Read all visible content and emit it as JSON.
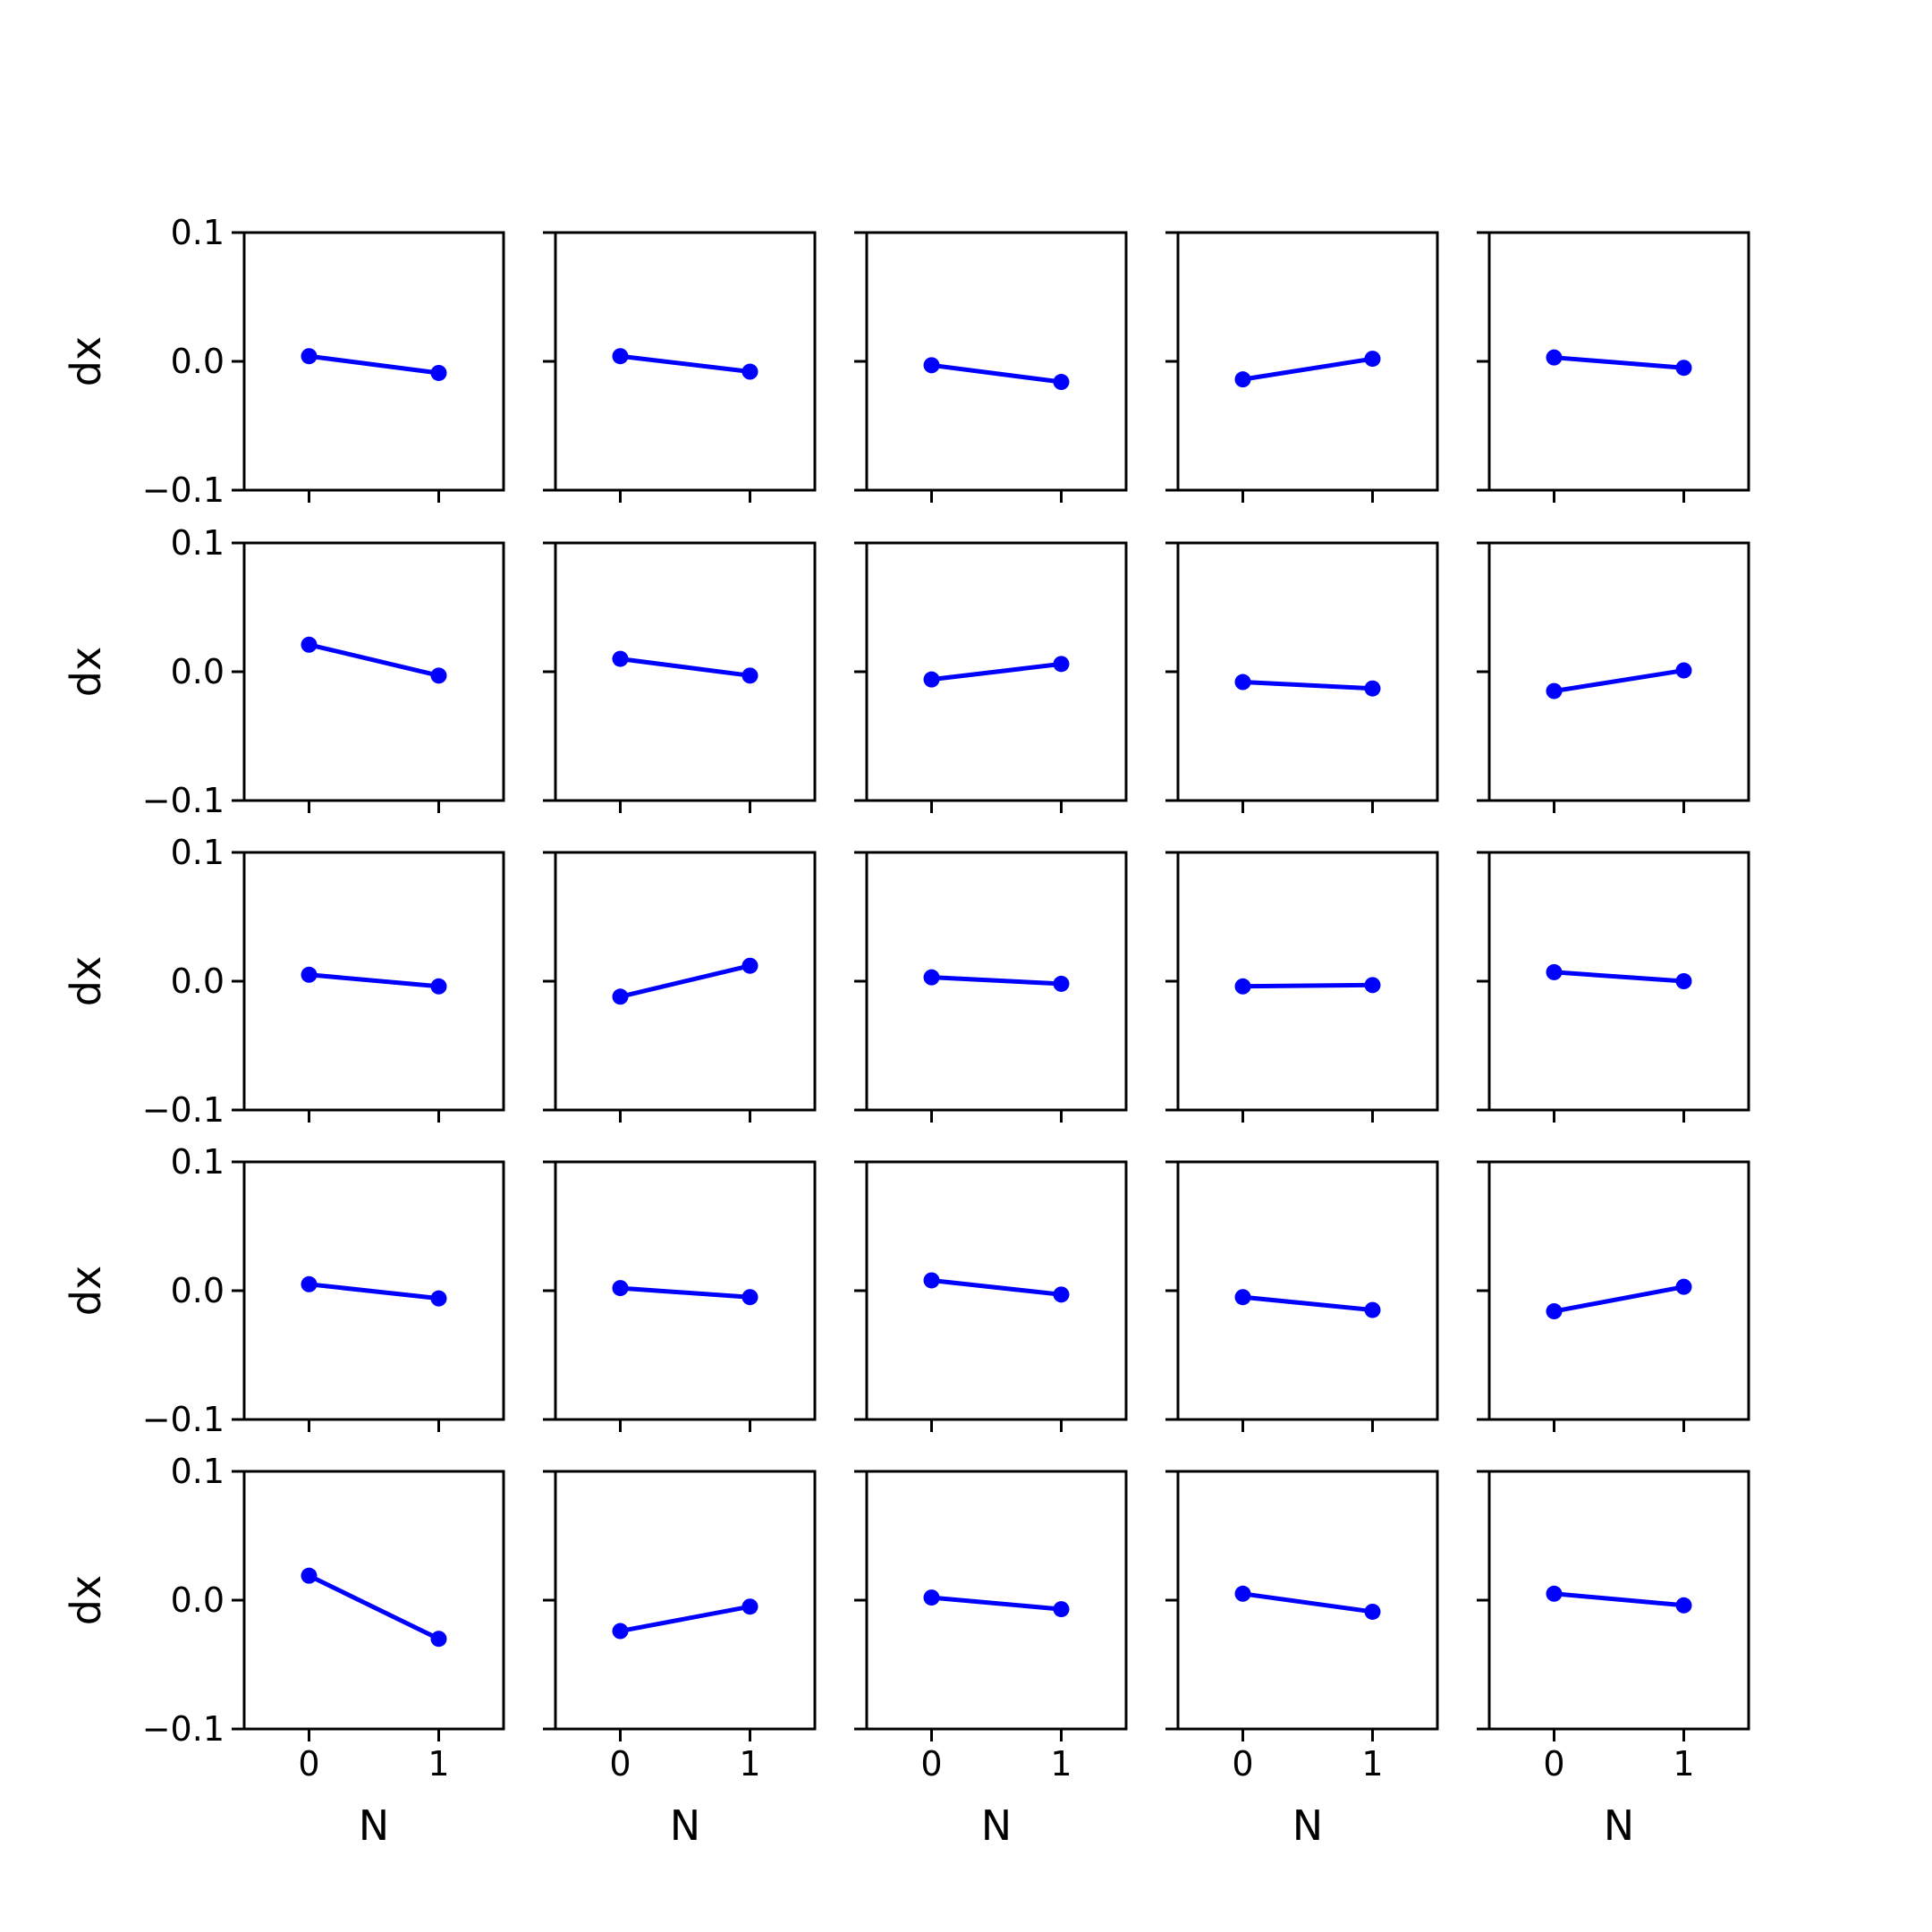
{
  "chart_data": {
    "type": "line",
    "layout": "5x5 small multiples",
    "line_color": "#0000ff",
    "xlabel": "N",
    "ylabel": "dx",
    "xlim": [
      -0.5,
      1.5
    ],
    "ylim": [
      -0.1,
      0.1
    ],
    "x_ticks": [
      "0",
      "1"
    ],
    "y_ticks": [
      "−0.1",
      "0.0",
      "0.1"
    ],
    "x": [
      0,
      1
    ],
    "grid": false,
    "panels": [
      {
        "values": [
          0.004,
          -0.009
        ]
      },
      {
        "values": [
          0.004,
          -0.008
        ]
      },
      {
        "values": [
          -0.003,
          -0.016
        ]
      },
      {
        "values": [
          -0.014,
          0.002
        ]
      },
      {
        "values": [
          0.003,
          -0.005
        ]
      },
      {
        "values": [
          0.021,
          -0.003
        ]
      },
      {
        "values": [
          0.01,
          -0.003
        ]
      },
      {
        "values": [
          -0.006,
          0.006
        ]
      },
      {
        "values": [
          -0.008,
          -0.013
        ]
      },
      {
        "values": [
          -0.015,
          0.001
        ]
      },
      {
        "values": [
          0.005,
          -0.004
        ]
      },
      {
        "values": [
          -0.012,
          0.012
        ]
      },
      {
        "values": [
          0.003,
          -0.002
        ]
      },
      {
        "values": [
          -0.004,
          -0.003
        ]
      },
      {
        "values": [
          0.007,
          0.0
        ]
      },
      {
        "values": [
          0.005,
          -0.006
        ]
      },
      {
        "values": [
          0.002,
          -0.005
        ]
      },
      {
        "values": [
          0.008,
          -0.003
        ]
      },
      {
        "values": [
          -0.005,
          -0.015
        ]
      },
      {
        "values": [
          -0.016,
          0.003
        ]
      },
      {
        "values": [
          0.019,
          -0.03
        ]
      },
      {
        "values": [
          -0.024,
          -0.005
        ]
      },
      {
        "values": [
          0.002,
          -0.007
        ]
      },
      {
        "values": [
          0.005,
          -0.009
        ]
      },
      {
        "values": [
          0.005,
          -0.004
        ]
      }
    ]
  }
}
